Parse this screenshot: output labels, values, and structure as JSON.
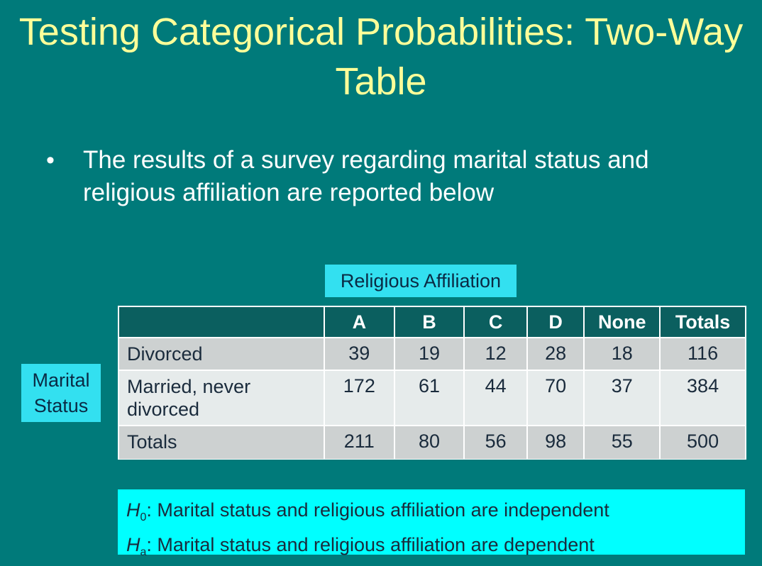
{
  "title": "Testing Categorical Probabilities: Two-Way Table",
  "bullet": "The results of a survey regarding marital status and religious affiliation are reported below",
  "column_axis_label": "Religious Affiliation",
  "row_axis_label": "Marital Status",
  "table": {
    "headers": [
      "",
      "A",
      "B",
      "C",
      "D",
      "None",
      "Totals"
    ],
    "rows": [
      [
        "Divorced",
        "39",
        "19",
        "12",
        "28",
        "18",
        "116"
      ],
      [
        "Married, never divorced",
        "172",
        "61",
        "44",
        "70",
        "37",
        "384"
      ],
      [
        "Totals",
        "211",
        "80",
        "56",
        "98",
        "55",
        "500"
      ]
    ]
  },
  "hypotheses": {
    "null": {
      "symbol": "H",
      "subscript": "0",
      "text": ": Marital status and religious affiliation are independent"
    },
    "alternative": {
      "symbol": "H",
      "subscript": "a",
      "text": ": Marital status and religious affiliation are dependent"
    }
  },
  "colors": {
    "background": "#007a7a",
    "title": "#ffff99",
    "label_box": "#33e0f0",
    "hypothesis_box": "#00ffff",
    "table_header": "#0b5f5f"
  }
}
